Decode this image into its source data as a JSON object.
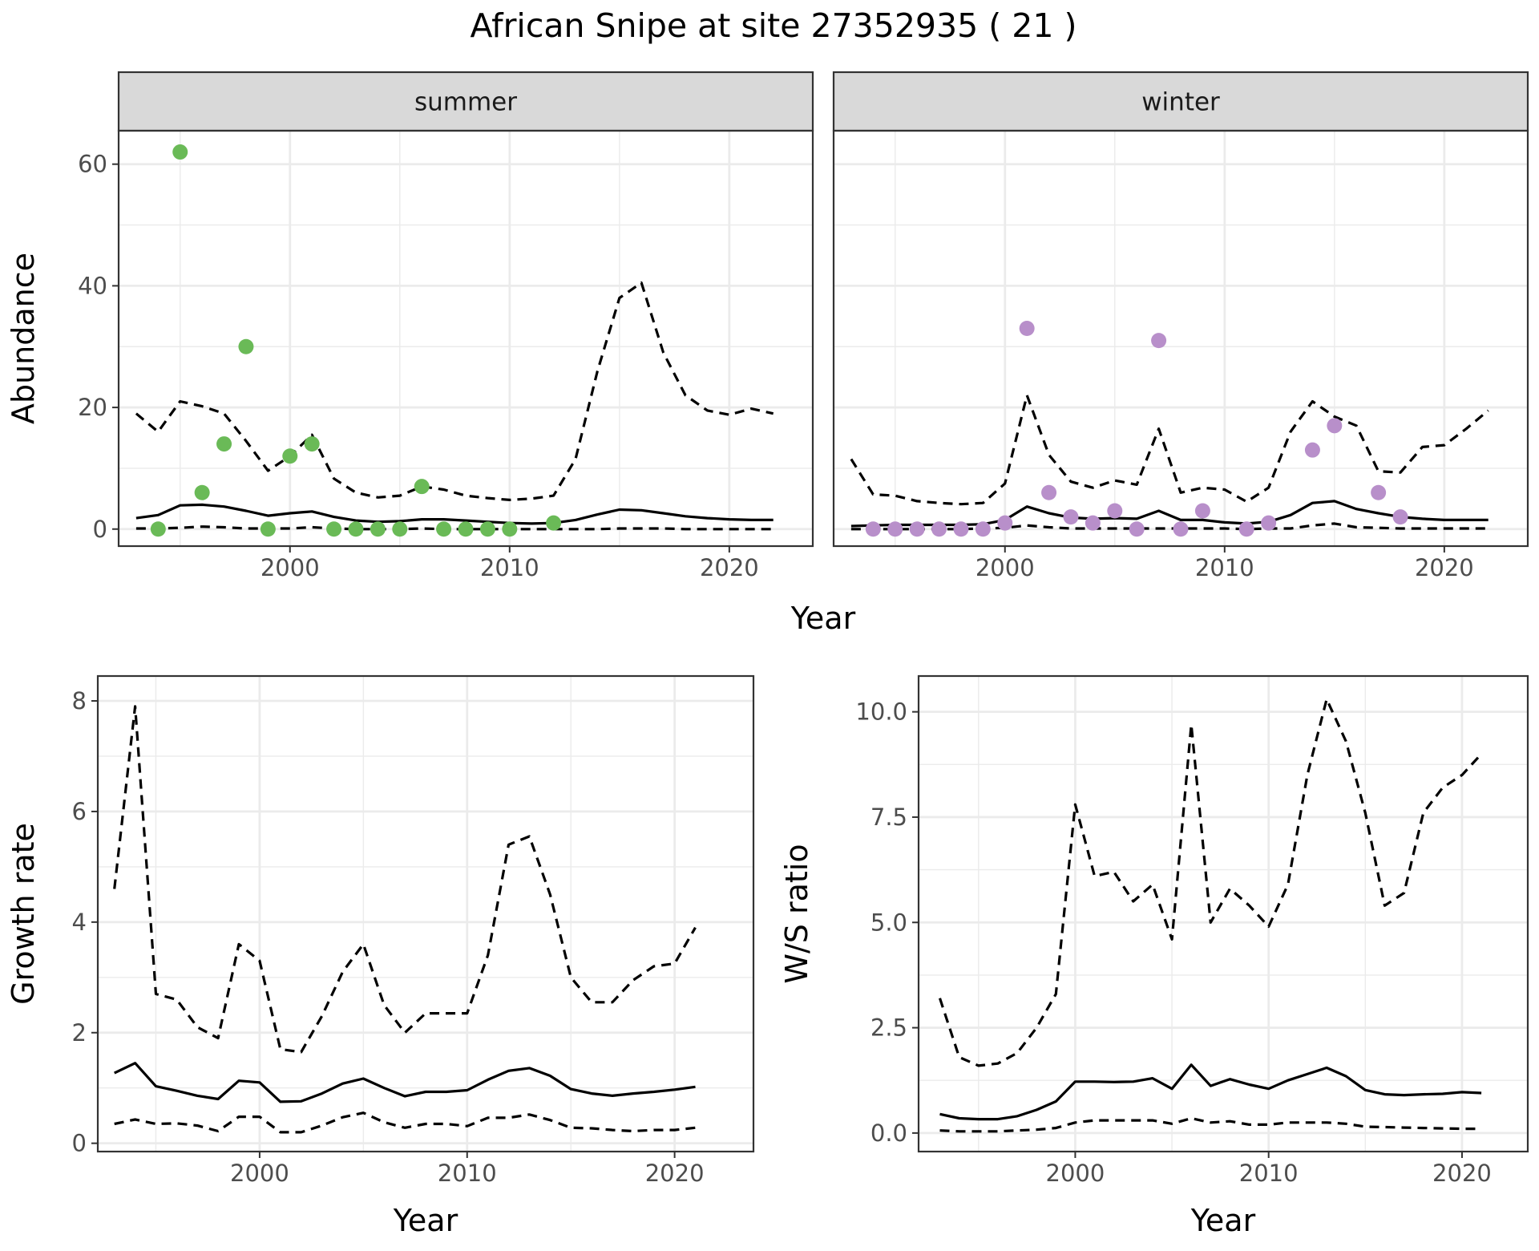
{
  "title": "African Snipe at site 27352935 ( 21 )",
  "colors": {
    "summer_points": "#6aba57",
    "winter_points": "#b88fca",
    "strip_bg": "#d9d9d9",
    "grid": "#ebebeb",
    "line": "#000000"
  },
  "chart_data": [
    {
      "id": "abundance",
      "type": "line",
      "facets": [
        "summer",
        "winter"
      ],
      "xlabel": "Year",
      "ylabel": "Abundance",
      "xlim": [
        1992.2,
        2023.8
      ],
      "ylim": [
        -2.8,
        65.5
      ],
      "xticks": [
        2000,
        2010,
        2020
      ],
      "yticks": [
        0,
        20,
        40,
        60
      ],
      "grid": true,
      "panels": [
        {
          "name": "summer",
          "points": {
            "x": [
              1994,
              1995,
              1996,
              1997,
              1998,
              1999,
              2000,
              2001,
              2002,
              2003,
              2004,
              2005,
              2006,
              2007,
              2008,
              2009,
              2010,
              2012
            ],
            "y": [
              0,
              62,
              6,
              14,
              30,
              0,
              12,
              14,
              0,
              0,
              0,
              0,
              7,
              0,
              0,
              0,
              0,
              1
            ]
          },
          "x": [
            1993,
            1994,
            1995,
            1996,
            1997,
            1998,
            1999,
            2000,
            2001,
            2002,
            2003,
            2004,
            2005,
            2006,
            2007,
            2008,
            2009,
            2010,
            2011,
            2012,
            2013,
            2014,
            2015,
            2016,
            2017,
            2018,
            2019,
            2020,
            2021,
            2022
          ],
          "mean": [
            1.8,
            2.3,
            3.9,
            4.0,
            3.7,
            3.0,
            2.2,
            2.6,
            2.9,
            2.0,
            1.4,
            1.2,
            1.3,
            1.6,
            1.6,
            1.4,
            1.2,
            1.0,
            0.9,
            1.0,
            1.5,
            2.4,
            3.2,
            3.1,
            2.6,
            2.1,
            1.8,
            1.6,
            1.5,
            1.5
          ],
          "upper": [
            19.0,
            16.0,
            21.0,
            20.2,
            19.0,
            14.5,
            9.6,
            12.0,
            15.5,
            8.3,
            6.0,
            5.2,
            5.5,
            7.0,
            6.5,
            5.5,
            5.1,
            4.8,
            5.0,
            5.5,
            11.5,
            26.0,
            38.0,
            40.5,
            29.0,
            22.0,
            19.5,
            18.8,
            19.8,
            19.0
          ],
          "lower": [
            0.1,
            0.1,
            0.2,
            0.4,
            0.3,
            0.1,
            0.1,
            0.1,
            0.3,
            0.1,
            0.0,
            0.0,
            0.0,
            0.1,
            0.0,
            0.0,
            0.0,
            0.0,
            0.0,
            0.0,
            0.0,
            0.0,
            0.1,
            0.1,
            0.1,
            0.0,
            0.0,
            0.0,
            0.0,
            0.0
          ]
        },
        {
          "name": "winter",
          "points": {
            "x": [
              1994,
              1995,
              1996,
              1997,
              1998,
              1999,
              2000,
              2001,
              2002,
              2003,
              2004,
              2005,
              2006,
              2007,
              2008,
              2009,
              2011,
              2012,
              2014,
              2015,
              2017,
              2018
            ],
            "y": [
              0,
              0,
              0,
              0,
              0,
              0,
              1,
              33,
              6,
              2,
              1,
              3,
              0,
              31,
              0,
              3,
              0,
              1,
              13,
              17,
              6,
              2
            ]
          },
          "x": [
            1993,
            1994,
            1995,
            1996,
            1997,
            1998,
            1999,
            2000,
            2001,
            2002,
            2003,
            2004,
            2005,
            2006,
            2007,
            2008,
            2009,
            2010,
            2011,
            2012,
            2013,
            2014,
            2015,
            2016,
            2017,
            2018,
            2019,
            2020,
            2021,
            2022
          ],
          "mean": [
            0.5,
            0.6,
            0.7,
            0.7,
            0.7,
            0.7,
            0.8,
            1.5,
            3.7,
            2.6,
            1.9,
            1.7,
            1.8,
            1.7,
            3.0,
            1.5,
            1.5,
            1.1,
            0.9,
            1.2,
            2.3,
            4.3,
            4.6,
            3.3,
            2.6,
            2.0,
            1.7,
            1.5,
            1.5,
            1.5
          ],
          "upper": [
            11.5,
            5.7,
            5.5,
            4.6,
            4.3,
            4.1,
            4.3,
            7.5,
            22.0,
            12.2,
            7.8,
            6.8,
            8.0,
            7.3,
            16.5,
            6.0,
            6.8,
            6.5,
            4.5,
            6.8,
            16.0,
            21.0,
            18.5,
            17.0,
            9.5,
            9.3,
            13.5,
            13.8,
            16.5,
            19.5
          ],
          "lower": [
            0.0,
            0.0,
            0.0,
            0.0,
            0.0,
            0.0,
            0.1,
            0.2,
            0.6,
            0.3,
            0.1,
            0.1,
            0.1,
            0.1,
            0.1,
            0.1,
            0.1,
            0.1,
            0.0,
            0.1,
            0.1,
            0.6,
            0.9,
            0.3,
            0.2,
            0.1,
            0.1,
            0.1,
            0.1,
            0.1
          ]
        }
      ]
    },
    {
      "id": "growth",
      "type": "line",
      "xlabel": "Year",
      "ylabel": "Growth rate",
      "xlim": [
        1992.2,
        2023.8
      ],
      "ylim": [
        -0.15,
        8.45
      ],
      "xticks": [
        2000,
        2010,
        2020
      ],
      "yticks": [
        0,
        2,
        4,
        6,
        8
      ],
      "grid": true,
      "x": [
        1993,
        1994,
        1995,
        1996,
        1997,
        1998,
        1999,
        2000,
        2001,
        2002,
        2003,
        2004,
        2005,
        2006,
        2007,
        2008,
        2009,
        2010,
        2011,
        2012,
        2013,
        2014,
        2015,
        2016,
        2017,
        2018,
        2019,
        2020,
        2021
      ],
      "mean": [
        1.27,
        1.45,
        1.03,
        0.95,
        0.86,
        0.8,
        1.13,
        1.1,
        0.75,
        0.76,
        0.9,
        1.08,
        1.17,
        1.0,
        0.85,
        0.93,
        0.93,
        0.96,
        1.15,
        1.31,
        1.36,
        1.22,
        0.98,
        0.9,
        0.86,
        0.9,
        0.93,
        0.97,
        1.02
      ],
      "upper": [
        4.6,
        7.9,
        2.7,
        2.6,
        2.1,
        1.9,
        3.6,
        3.3,
        1.7,
        1.65,
        2.3,
        3.1,
        3.6,
        2.5,
        2.0,
        2.35,
        2.35,
        2.35,
        3.4,
        5.4,
        5.55,
        4.5,
        3.0,
        2.55,
        2.55,
        2.95,
        3.2,
        3.25,
        3.9
      ],
      "lower": [
        0.35,
        0.43,
        0.35,
        0.36,
        0.32,
        0.22,
        0.48,
        0.48,
        0.2,
        0.2,
        0.32,
        0.47,
        0.55,
        0.38,
        0.28,
        0.35,
        0.35,
        0.31,
        0.46,
        0.46,
        0.52,
        0.42,
        0.28,
        0.27,
        0.24,
        0.22,
        0.24,
        0.24,
        0.28
      ]
    },
    {
      "id": "ratio",
      "type": "line",
      "xlabel": "Year",
      "ylabel": "W/S ratio",
      "xlim": [
        1991.9,
        2023.4
      ],
      "ylim": [
        -0.44,
        10.85
      ],
      "xticks": [
        2000,
        2010,
        2020
      ],
      "yticks": [
        0,
        2.5,
        5,
        7.5,
        10
      ],
      "ytick_labels": [
        "0.0",
        "2.5",
        "5.0",
        "7.5",
        "10.0"
      ],
      "grid": true,
      "x": [
        1993,
        1994,
        1995,
        1996,
        1997,
        1998,
        1999,
        2000,
        2001,
        2002,
        2003,
        2004,
        2005,
        2006,
        2007,
        2008,
        2009,
        2010,
        2011,
        2012,
        2013,
        2014,
        2015,
        2016,
        2017,
        2018,
        2019,
        2020,
        2021
      ],
      "mean": [
        0.45,
        0.35,
        0.33,
        0.33,
        0.4,
        0.55,
        0.75,
        1.22,
        1.22,
        1.21,
        1.22,
        1.3,
        1.05,
        1.62,
        1.12,
        1.28,
        1.15,
        1.05,
        1.25,
        1.4,
        1.55,
        1.35,
        1.02,
        0.92,
        0.9,
        0.92,
        0.93,
        0.97,
        0.95
      ],
      "upper": [
        3.2,
        1.8,
        1.6,
        1.65,
        1.9,
        2.5,
        3.3,
        7.8,
        6.1,
        6.2,
        5.5,
        5.9,
        4.6,
        9.7,
        5.0,
        5.8,
        5.4,
        4.9,
        5.9,
        8.5,
        10.3,
        9.3,
        7.6,
        5.4,
        5.7,
        7.6,
        8.2,
        8.5,
        9.0
      ],
      "lower": [
        0.06,
        0.04,
        0.04,
        0.04,
        0.06,
        0.08,
        0.12,
        0.25,
        0.3,
        0.3,
        0.3,
        0.3,
        0.22,
        0.35,
        0.25,
        0.28,
        0.2,
        0.2,
        0.25,
        0.25,
        0.25,
        0.22,
        0.15,
        0.14,
        0.13,
        0.12,
        0.11,
        0.1,
        0.1
      ]
    }
  ]
}
